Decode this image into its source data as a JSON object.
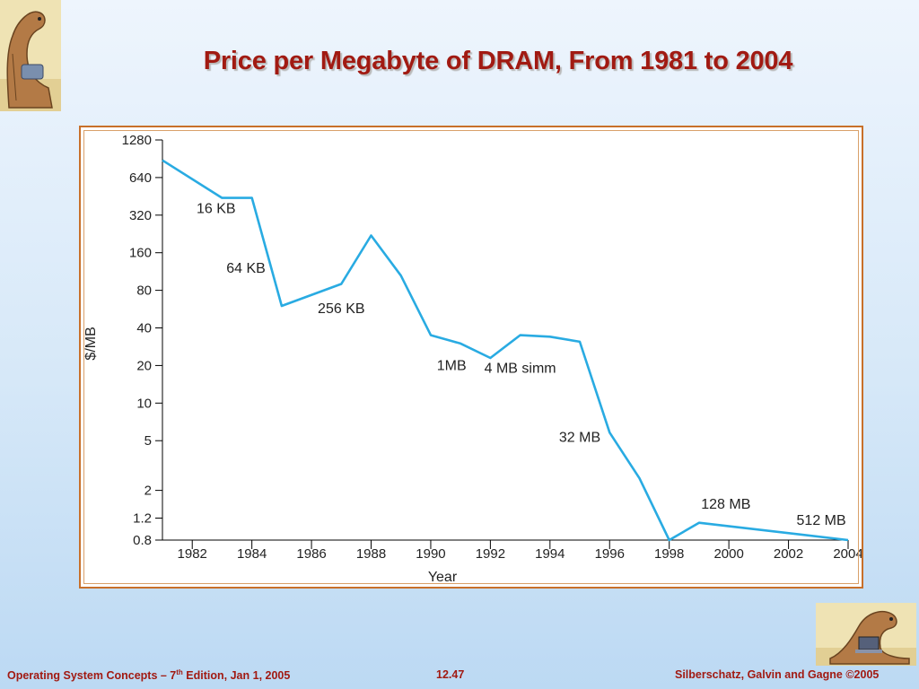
{
  "slide": {
    "title": "Price per Megabyte of DRAM, From 1981 to 2004",
    "footer_left_prefix": "Operating System Concepts – 7",
    "footer_left_sup": "th",
    "footer_left_suffix": " Edition, Jan 1, 2005",
    "footer_center": "12.47",
    "footer_right": "Silberschatz, Galvin and Gagne ©2005",
    "accent_color": "#a11a12",
    "frame_color": "#c8702a"
  },
  "chart_data": {
    "type": "line",
    "title": "",
    "xlabel": "Year",
    "ylabel": "$/MB",
    "yscale": "log",
    "xlim": [
      1981,
      2004
    ],
    "ylim": [
      0.8,
      1280
    ],
    "x_ticks": [
      1982,
      1984,
      1986,
      1988,
      1990,
      1992,
      1994,
      1996,
      1998,
      2000,
      2002,
      2004
    ],
    "y_ticks": [
      1280,
      640,
      320,
      160,
      80,
      40,
      20,
      10,
      5,
      2,
      1.2,
      0.8
    ],
    "grid": false,
    "line_color": "#29abe2",
    "series": [
      {
        "x": [
          1981,
          1983,
          1984,
          1985,
          1987,
          1988,
          1989,
          1990,
          1991,
          1992,
          1993,
          1994,
          1995,
          1996,
          1997,
          1998,
          1999,
          2004
        ],
        "values": [
          880,
          440,
          440,
          60,
          90,
          220,
          105,
          35,
          30,
          23,
          35,
          34,
          31,
          5.8,
          2.5,
          0.8,
          1.1,
          0.8
        ]
      }
    ],
    "annotations": [
      {
        "text": "16 KB",
        "x": 1982.8,
        "y": 360
      },
      {
        "text": "64 KB",
        "x": 1983.8,
        "y": 120
      },
      {
        "text": "256 KB",
        "x": 1987.0,
        "y": 57
      },
      {
        "text": "1MB",
        "x": 1990.7,
        "y": 20
      },
      {
        "text": "4 MB simm",
        "x": 1993.0,
        "y": 19
      },
      {
        "text": "32 MB",
        "x": 1995.0,
        "y": 5.3
      },
      {
        "text": "128 MB",
        "x": 1999.9,
        "y": 1.55
      },
      {
        "text": "512 MB",
        "x": 2003.1,
        "y": 1.15
      }
    ]
  }
}
